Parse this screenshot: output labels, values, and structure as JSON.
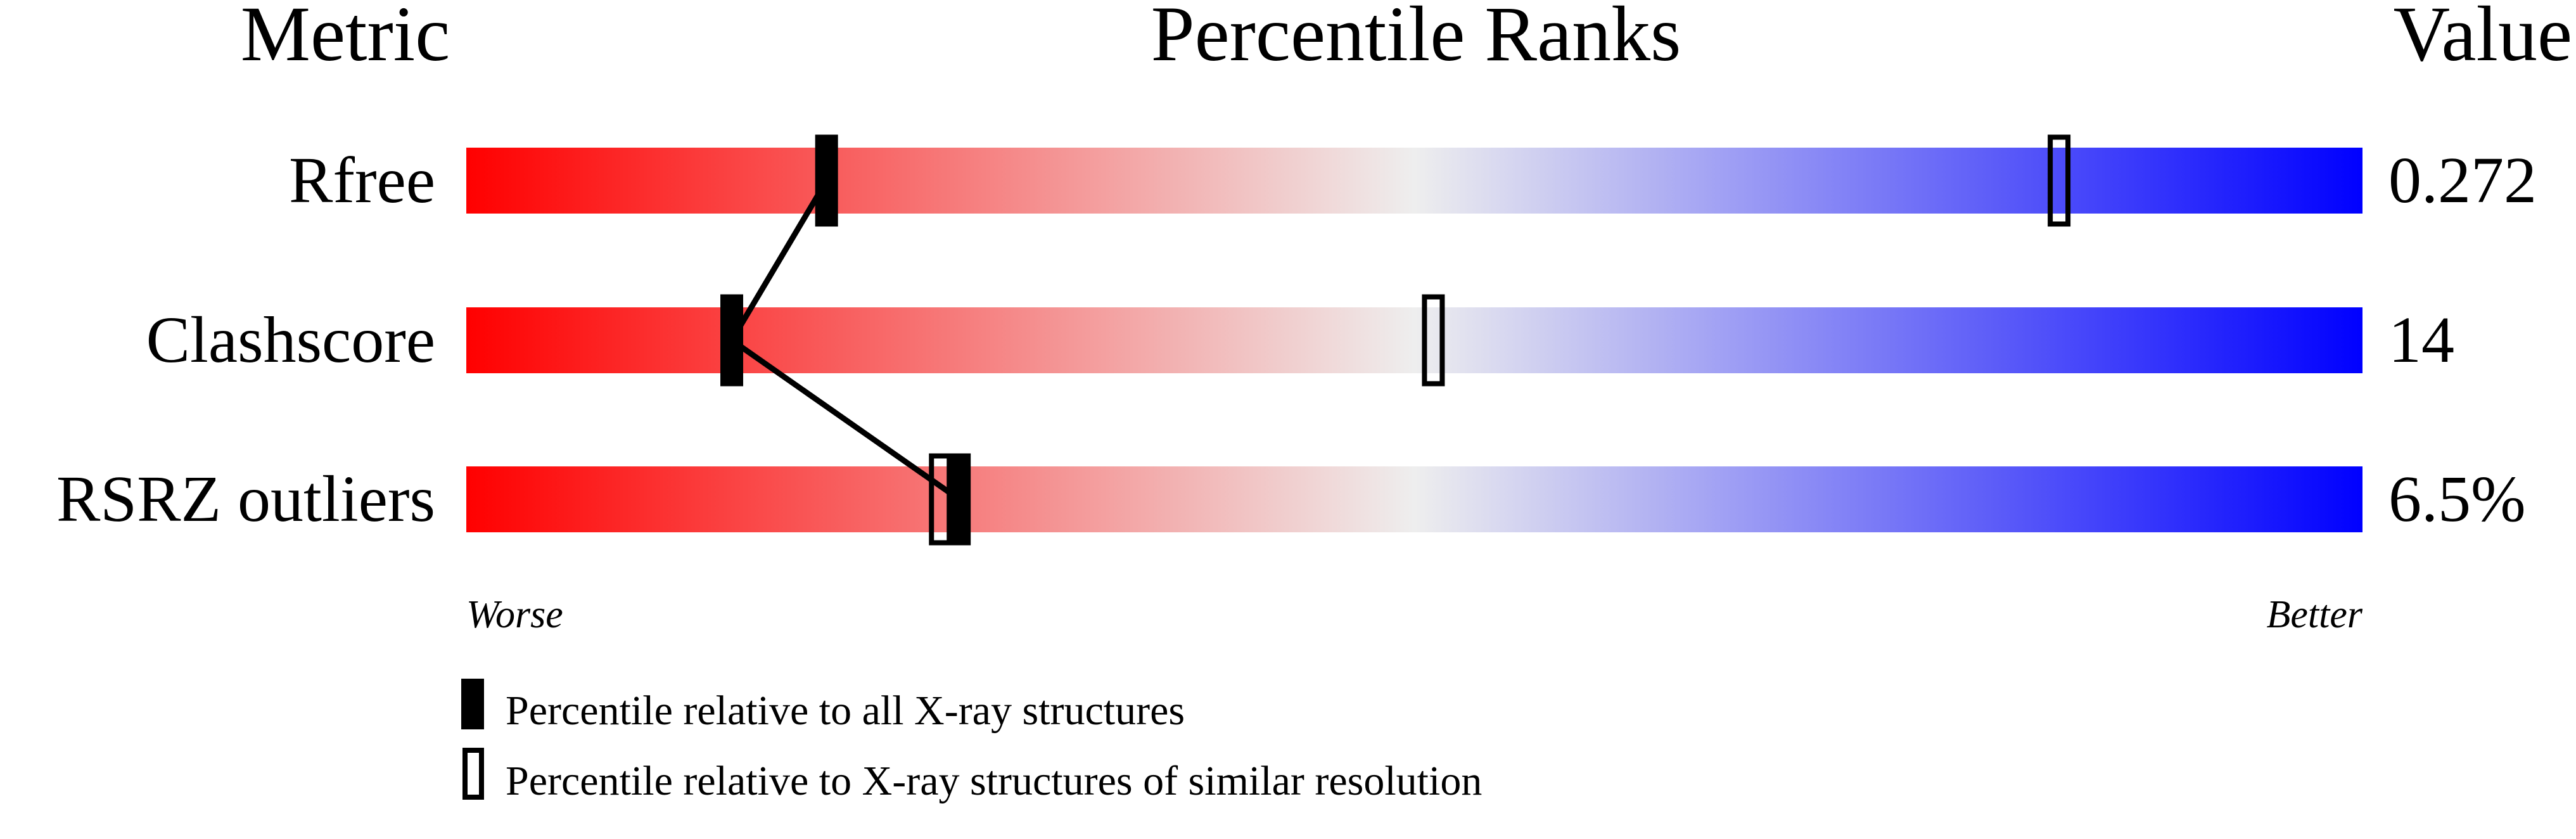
{
  "chart_data": {
    "type": "bar",
    "title": "Percentile Ranks",
    "header_left": "Metric",
    "header_right": "Value",
    "xlim": [
      0,
      100
    ],
    "axis_left_label": "Worse",
    "axis_right_label": "Better",
    "colors": {
      "worse": "#ff0000",
      "middle": "#eeeeee",
      "better": "#0000ff",
      "marker": "#000000"
    },
    "metrics": [
      {
        "name": "Rfree",
        "value": "0.272",
        "percentile_all": 19,
        "percentile_similar": 84
      },
      {
        "name": "Clashscore",
        "value": "14",
        "percentile_all": 14,
        "percentile_similar": 51
      },
      {
        "name": "RSRZ outliers",
        "value": "6.5%",
        "percentile_all": 26,
        "percentile_similar": 25
      }
    ],
    "legend": [
      {
        "marker": "filled",
        "label": "Percentile relative to all X-ray structures"
      },
      {
        "marker": "open",
        "label": "Percentile relative to X-ray structures of similar resolution"
      }
    ]
  }
}
